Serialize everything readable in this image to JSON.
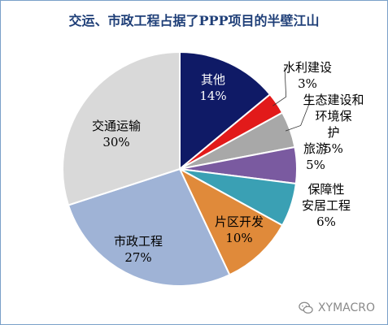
{
  "chart_data": {
    "type": "pie",
    "title": "交运、市政工程占据了PPP项目的半壁江山",
    "slices": [
      {
        "label": "其他",
        "value": 14,
        "value_text": "14%",
        "color": "#0f1a66"
      },
      {
        "label": "水利建设",
        "value": 3,
        "value_text": "3%",
        "color": "#e21a1a"
      },
      {
        "label": "生态建设和环境保护",
        "value": 5,
        "value_text": "5%",
        "color": "#a8a8a8"
      },
      {
        "label": "旅游",
        "value": 5,
        "value_text": "5%",
        "color": "#7a5aa0"
      },
      {
        "label": "保障性安居工程",
        "value": 6,
        "value_text": "6%",
        "color": "#3aa0b4"
      },
      {
        "label": "片区开发",
        "value": 10,
        "value_text": "10%",
        "color": "#e08a3a"
      },
      {
        "label": "市政工程",
        "value": 27,
        "value_text": "27%",
        "color": "#9fb3d6"
      },
      {
        "label": "交通运输",
        "value": 30,
        "value_text": "30%",
        "color": "#d9d9d9"
      }
    ]
  },
  "watermark": {
    "icon": "wechat-icon",
    "text": "XYMACRO"
  }
}
